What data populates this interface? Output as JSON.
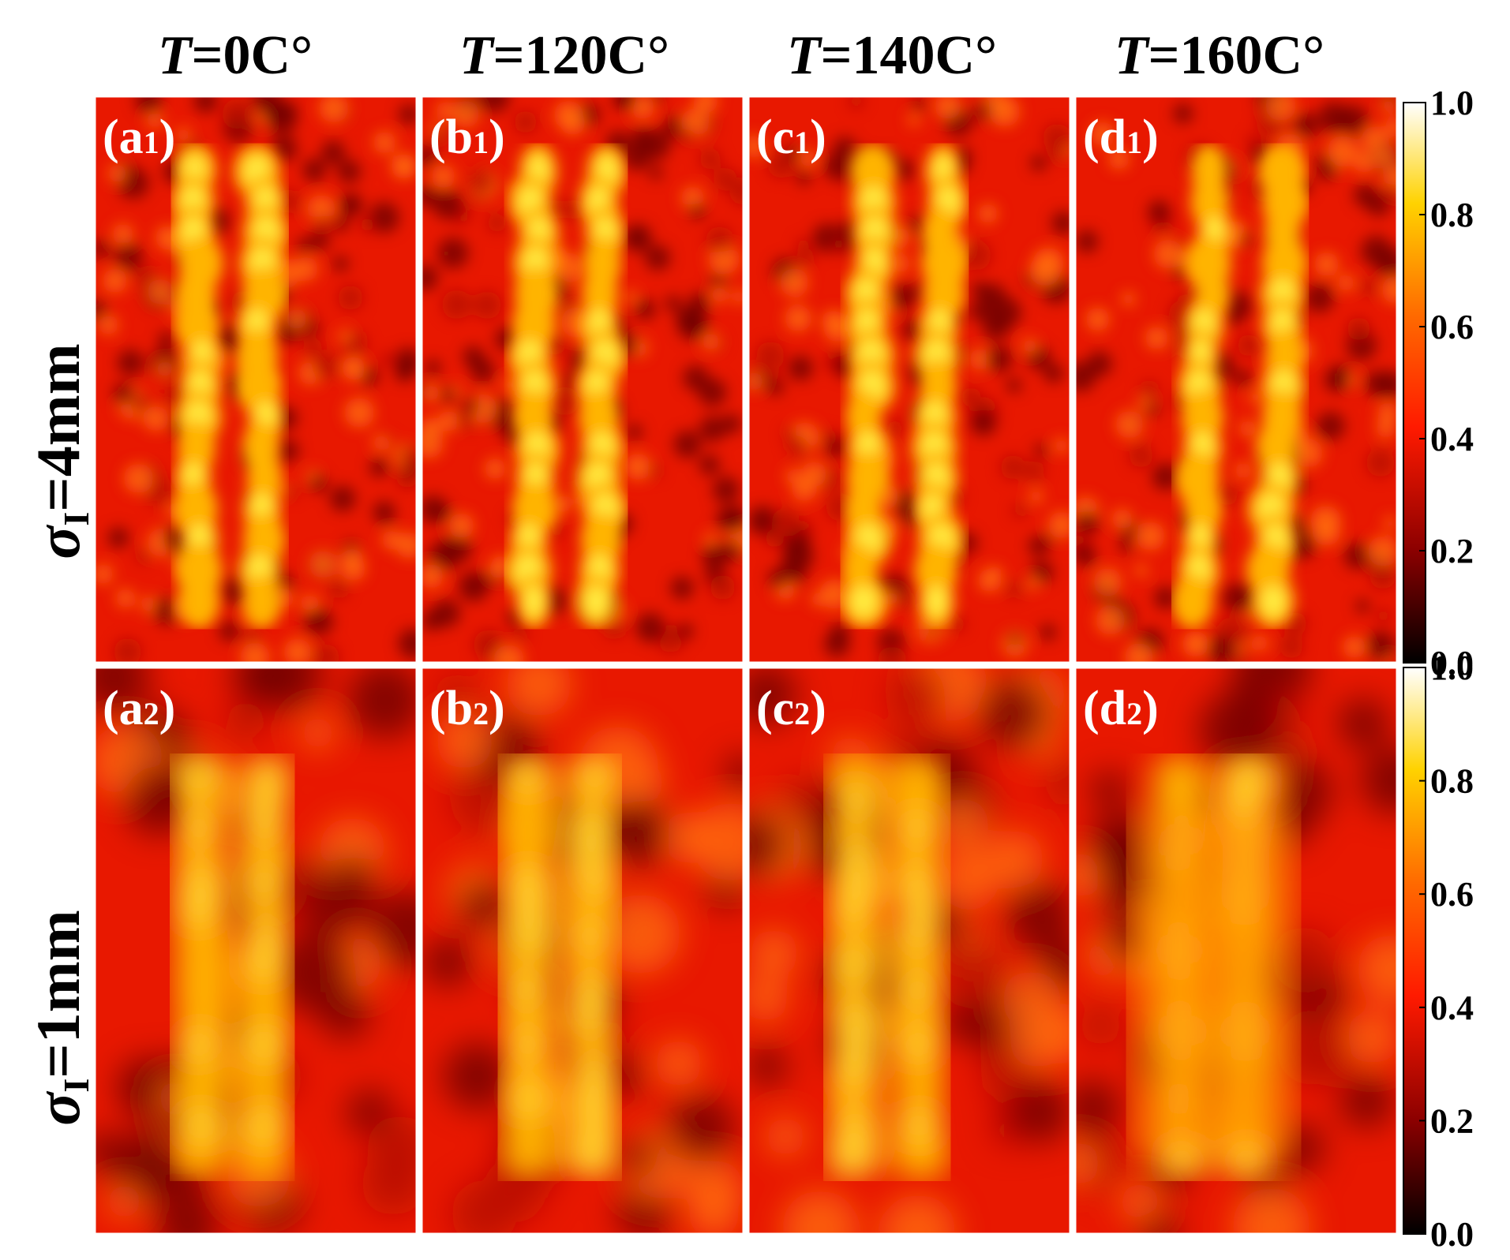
{
  "chart_data": {
    "type": "heatmap",
    "title": "",
    "columns": [
      {
        "prefix": "T",
        "value": "=0C°"
      },
      {
        "prefix": "T",
        "value": "=120C°"
      },
      {
        "prefix": "T",
        "value": "=140C°"
      },
      {
        "prefix": "T",
        "value": "=160C°"
      }
    ],
    "rows": [
      {
        "symbol": "σ",
        "subscript": "I",
        "value": "=4mm"
      },
      {
        "symbol": "σ",
        "subscript": "I",
        "value": "=1mm"
      }
    ],
    "panels": [
      [
        {
          "letter": "a",
          "sub": "1",
          "temperature_C": 0,
          "sigma_mm": 4
        },
        {
          "letter": "b",
          "sub": "1",
          "temperature_C": 120,
          "sigma_mm": 4
        },
        {
          "letter": "c",
          "sub": "1",
          "temperature_C": 140,
          "sigma_mm": 4
        },
        {
          "letter": "d",
          "sub": "1",
          "temperature_C": 160,
          "sigma_mm": 4
        }
      ],
      [
        {
          "letter": "a",
          "sub": "2",
          "temperature_C": 0,
          "sigma_mm": 1
        },
        {
          "letter": "b",
          "sub": "2",
          "temperature_C": 120,
          "sigma_mm": 1
        },
        {
          "letter": "c",
          "sub": "2",
          "temperature_C": 140,
          "sigma_mm": 1
        },
        {
          "letter": "d",
          "sub": "2",
          "temperature_C": 160,
          "sigma_mm": 1
        }
      ]
    ],
    "colorbar": {
      "range": [
        0,
        1
      ],
      "ticks": [
        "1.0",
        "0.8",
        "0.6",
        "0.4",
        "0.2",
        "0.0"
      ],
      "colormap": [
        "#000000",
        "#8b0000",
        "#ff1a00",
        "#ff6a00",
        "#ffd200",
        "#ffffff"
      ]
    }
  }
}
